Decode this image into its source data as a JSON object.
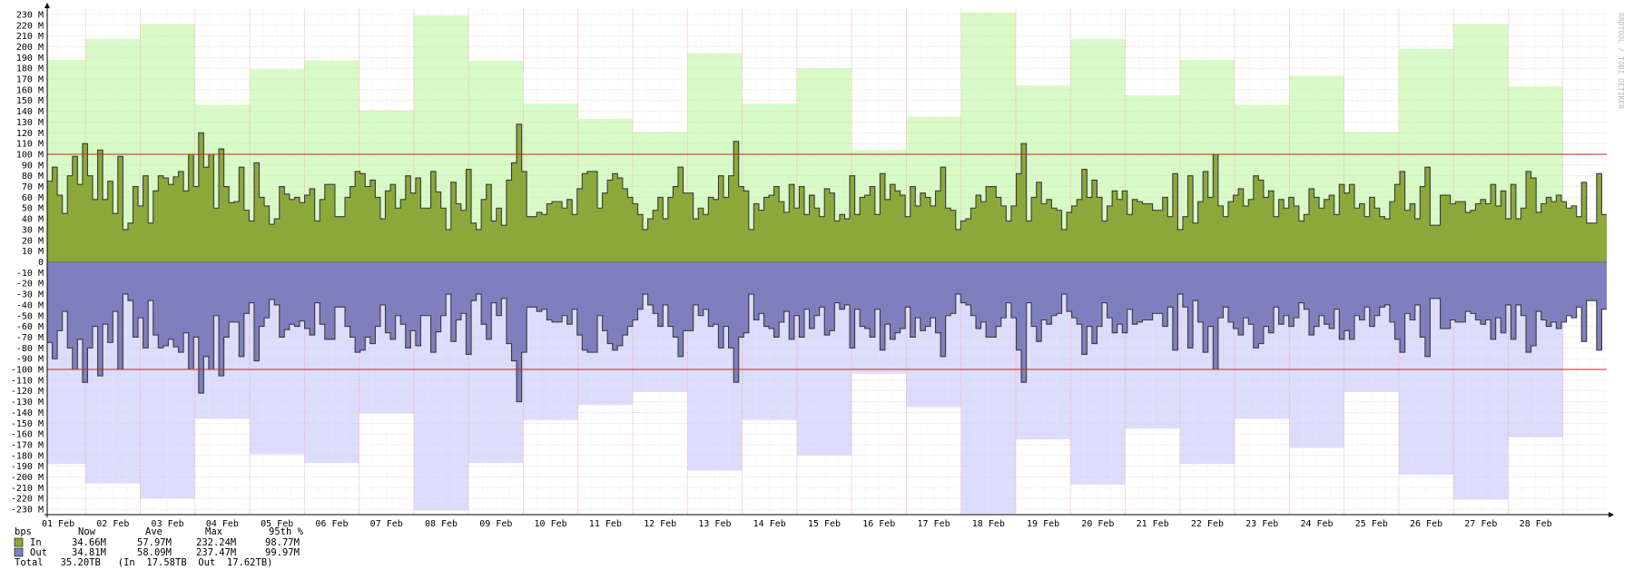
{
  "chart_data": {
    "type": "area",
    "x_axis_ticks": [
      "01 Feb",
      "02 Feb",
      "03 Feb",
      "04 Feb",
      "05 Feb",
      "06 Feb",
      "07 Feb",
      "08 Feb",
      "09 Feb",
      "10 Feb",
      "11 Feb",
      "12 Feb",
      "13 Feb",
      "14 Feb",
      "15 Feb",
      "16 Feb",
      "17 Feb",
      "18 Feb",
      "19 Feb",
      "20 Feb",
      "21 Feb",
      "22 Feb",
      "23 Feb",
      "24 Feb",
      "25 Feb",
      "26 Feb",
      "27 Feb",
      "28 Feb"
    ],
    "y_axis_ticks": [
      "230 M",
      "220 M",
      "210 M",
      "200 M",
      "190 M",
      "180 M",
      "170 M",
      "160 M",
      "150 M",
      "140 M",
      "130 M",
      "120 M",
      "110 M",
      "100 M",
      "90 M",
      "80 M",
      "70 M",
      "60 M",
      "50 M",
      "40 M",
      "30 M",
      "20 M",
      "10 M",
      "0",
      "-10 M",
      "-20 M",
      "-30 M",
      "-40 M",
      "-50 M",
      "-60 M",
      "-70 M",
      "-80 M",
      "-90 M",
      "-100 M",
      "-110 M",
      "-120 M",
      "-130 M",
      "-140 M",
      "-150 M",
      "-160 M",
      "-170 M",
      "-180 M",
      "-190 M",
      "-200 M",
      "-210 M",
      "-220 M",
      "-230 M"
    ],
    "ylim": [
      -235,
      235
    ],
    "y_unit": "M",
    "x_range_days": [
      0.3,
      28.8
    ],
    "percentile_line": 100,
    "grid": true,
    "series": [
      {
        "name": "In",
        "color": "#8da83a",
        "max_envelope_color": "#d7fbc6",
        "daily_max": [
          188,
          207,
          221,
          146,
          179,
          187,
          141,
          229,
          187,
          147,
          133,
          121,
          194,
          147,
          180,
          104,
          135,
          232,
          164,
          207,
          155,
          188,
          146,
          173,
          121,
          198,
          221,
          163
        ],
        "trace": [
          75,
          88,
          62,
          45,
          80,
          98,
          72,
          110,
          80,
          58,
          104,
          58,
          75,
          45,
          98,
          30,
          36,
          70,
          52,
          80,
          36,
          66,
          80,
          78,
          72,
          79,
          84,
          66,
          100,
          70,
          120,
          88,
          100,
          50,
          105,
          70,
          55,
          56,
          88,
          48,
          38,
          92,
          60,
          52,
          35,
          40,
          70,
          63,
          58,
          60,
          55,
          62,
          68,
          38,
          58,
          72,
          72,
          42,
          42,
          60,
          70,
          84,
          82,
          70,
          76,
          60,
          40,
          66,
          72,
          50,
          58,
          80,
          64,
          78,
          50,
          50,
          84,
          65,
          50,
          30,
          74,
          54,
          48,
          86,
          36,
          30,
          58,
          72,
          38,
          50,
          34,
          76,
          92,
          128,
          84,
          42,
          42,
          46,
          44,
          54,
          56,
          56,
          50,
          58,
          44,
          68,
          82,
          84,
          84,
          50,
          64,
          76,
          82,
          78,
          68,
          60,
          54,
          44,
          30,
          40,
          48,
          60,
          40,
          60,
          70,
          88,
          64,
          64,
          40,
          50,
          44,
          60,
          58,
          80,
          60,
          80,
          112,
          70,
          66,
          30,
          54,
          48,
          60,
          62,
          70,
          56,
          46,
          72,
          50,
          70,
          44,
          62,
          50,
          42,
          68,
          64,
          38,
          44,
          40,
          80,
          44,
          60,
          62,
          70,
          44,
          82,
          58,
          72,
          66,
          62,
          42,
          70,
          52,
          64,
          60,
          52,
          66,
          88,
          50,
          48,
          30,
          38,
          40,
          50,
          62,
          56,
          70,
          70,
          60,
          52,
          38,
          52,
          82,
          110,
          38,
          60,
          74,
          54,
          58,
          50,
          48,
          30,
          46,
          52,
          58,
          86,
          60,
          76,
          60,
          38,
          52,
          66,
          58,
          66,
          44,
          58,
          56,
          54,
          54,
          48,
          48,
          60,
          42,
          82,
          30,
          42,
          80,
          36,
          56,
          84,
          60,
          100,
          52,
          42,
          56,
          62,
          68,
          52,
          58,
          80,
          76,
          60,
          66,
          42,
          58,
          50,
          60,
          52,
          38,
          44,
          68,
          60,
          50,
          58,
          62,
          44,
          72,
          64,
          72,
          50,
          54,
          42,
          60,
          50,
          42,
          40,
          56,
          72,
          84,
          48,
          54,
          40,
          70,
          88,
          34,
          34,
          62,
          62,
          54,
          56,
          56,
          46,
          48,
          54,
          58,
          54,
          72,
          52,
          66,
          40,
          72,
          40,
          50,
          84,
          78,
          46,
          54,
          60,
          56,
          62,
          56,
          50,
          52,
          42,
          74,
          36,
          36,
          82,
          44
        ]
      },
      {
        "name": "Out",
        "color": "#7f7fbf",
        "max_envelope_color": "#dcdcfd",
        "daily_max": [
          188,
          206,
          220,
          146,
          179,
          187,
          141,
          231,
          187,
          147,
          133,
          121,
          194,
          147,
          180,
          104,
          135,
          234,
          165,
          207,
          155,
          188,
          146,
          173,
          121,
          198,
          221,
          163
        ],
        "trace": [
          75,
          90,
          64,
          46,
          80,
          100,
          72,
          112,
          80,
          60,
          106,
          58,
          75,
          46,
          100,
          30,
          36,
          70,
          52,
          80,
          36,
          68,
          80,
          78,
          72,
          79,
          84,
          66,
          100,
          70,
          122,
          88,
          100,
          50,
          106,
          70,
          56,
          56,
          88,
          48,
          38,
          92,
          60,
          52,
          35,
          40,
          70,
          63,
          58,
          60,
          55,
          62,
          68,
          38,
          58,
          72,
          72,
          42,
          42,
          60,
          70,
          84,
          82,
          70,
          76,
          60,
          40,
          66,
          72,
          50,
          58,
          80,
          64,
          78,
          50,
          50,
          84,
          65,
          50,
          30,
          74,
          54,
          48,
          86,
          36,
          30,
          58,
          72,
          38,
          50,
          34,
          76,
          92,
          130,
          84,
          42,
          42,
          46,
          44,
          54,
          56,
          56,
          50,
          58,
          44,
          68,
          82,
          84,
          84,
          50,
          64,
          76,
          82,
          78,
          68,
          60,
          54,
          44,
          30,
          40,
          48,
          60,
          40,
          60,
          70,
          88,
          64,
          64,
          40,
          50,
          44,
          60,
          58,
          80,
          60,
          80,
          112,
          70,
          66,
          30,
          54,
          48,
          60,
          62,
          70,
          56,
          46,
          72,
          50,
          70,
          44,
          62,
          50,
          42,
          68,
          64,
          38,
          44,
          40,
          80,
          44,
          60,
          62,
          70,
          44,
          82,
          58,
          72,
          66,
          62,
          42,
          70,
          52,
          64,
          60,
          52,
          66,
          88,
          50,
          48,
          30,
          38,
          40,
          50,
          62,
          56,
          70,
          70,
          60,
          52,
          38,
          52,
          82,
          112,
          38,
          60,
          74,
          54,
          58,
          50,
          48,
          30,
          46,
          52,
          58,
          86,
          60,
          76,
          60,
          38,
          52,
          66,
          58,
          66,
          44,
          58,
          56,
          54,
          54,
          48,
          48,
          60,
          42,
          82,
          30,
          42,
          80,
          36,
          56,
          84,
          60,
          100,
          52,
          42,
          56,
          62,
          68,
          52,
          58,
          80,
          76,
          60,
          66,
          42,
          58,
          50,
          60,
          52,
          38,
          44,
          68,
          60,
          50,
          58,
          62,
          44,
          72,
          64,
          72,
          50,
          54,
          42,
          60,
          50,
          42,
          40,
          56,
          72,
          84,
          48,
          54,
          40,
          70,
          88,
          34,
          34,
          62,
          62,
          54,
          56,
          56,
          46,
          48,
          54,
          58,
          54,
          72,
          52,
          66,
          40,
          72,
          40,
          50,
          84,
          78,
          46,
          54,
          60,
          56,
          62,
          56,
          50,
          52,
          42,
          74,
          36,
          36,
          82,
          44
        ]
      }
    ],
    "watermark": "RRDTOOL / TOBI OETIKER",
    "legend": {
      "header": {
        "unit": "bps",
        "now": "Now",
        "ave": "Ave",
        "max": "Max",
        "p95": "95th %"
      },
      "rows": [
        {
          "label": "In",
          "color": "#8da83a",
          "now": "34.66M",
          "ave": "57.97M",
          "max": "232.24M",
          "p95": "98.77M"
        },
        {
          "label": "Out",
          "color": "#7f7fbf",
          "now": "34.81M",
          "ave": "58.09M",
          "max": "237.47M",
          "p95": "99.97M"
        }
      ],
      "total_line": "Total   35.20TB   (In  17.58TB  Out  17.62TB)"
    }
  }
}
